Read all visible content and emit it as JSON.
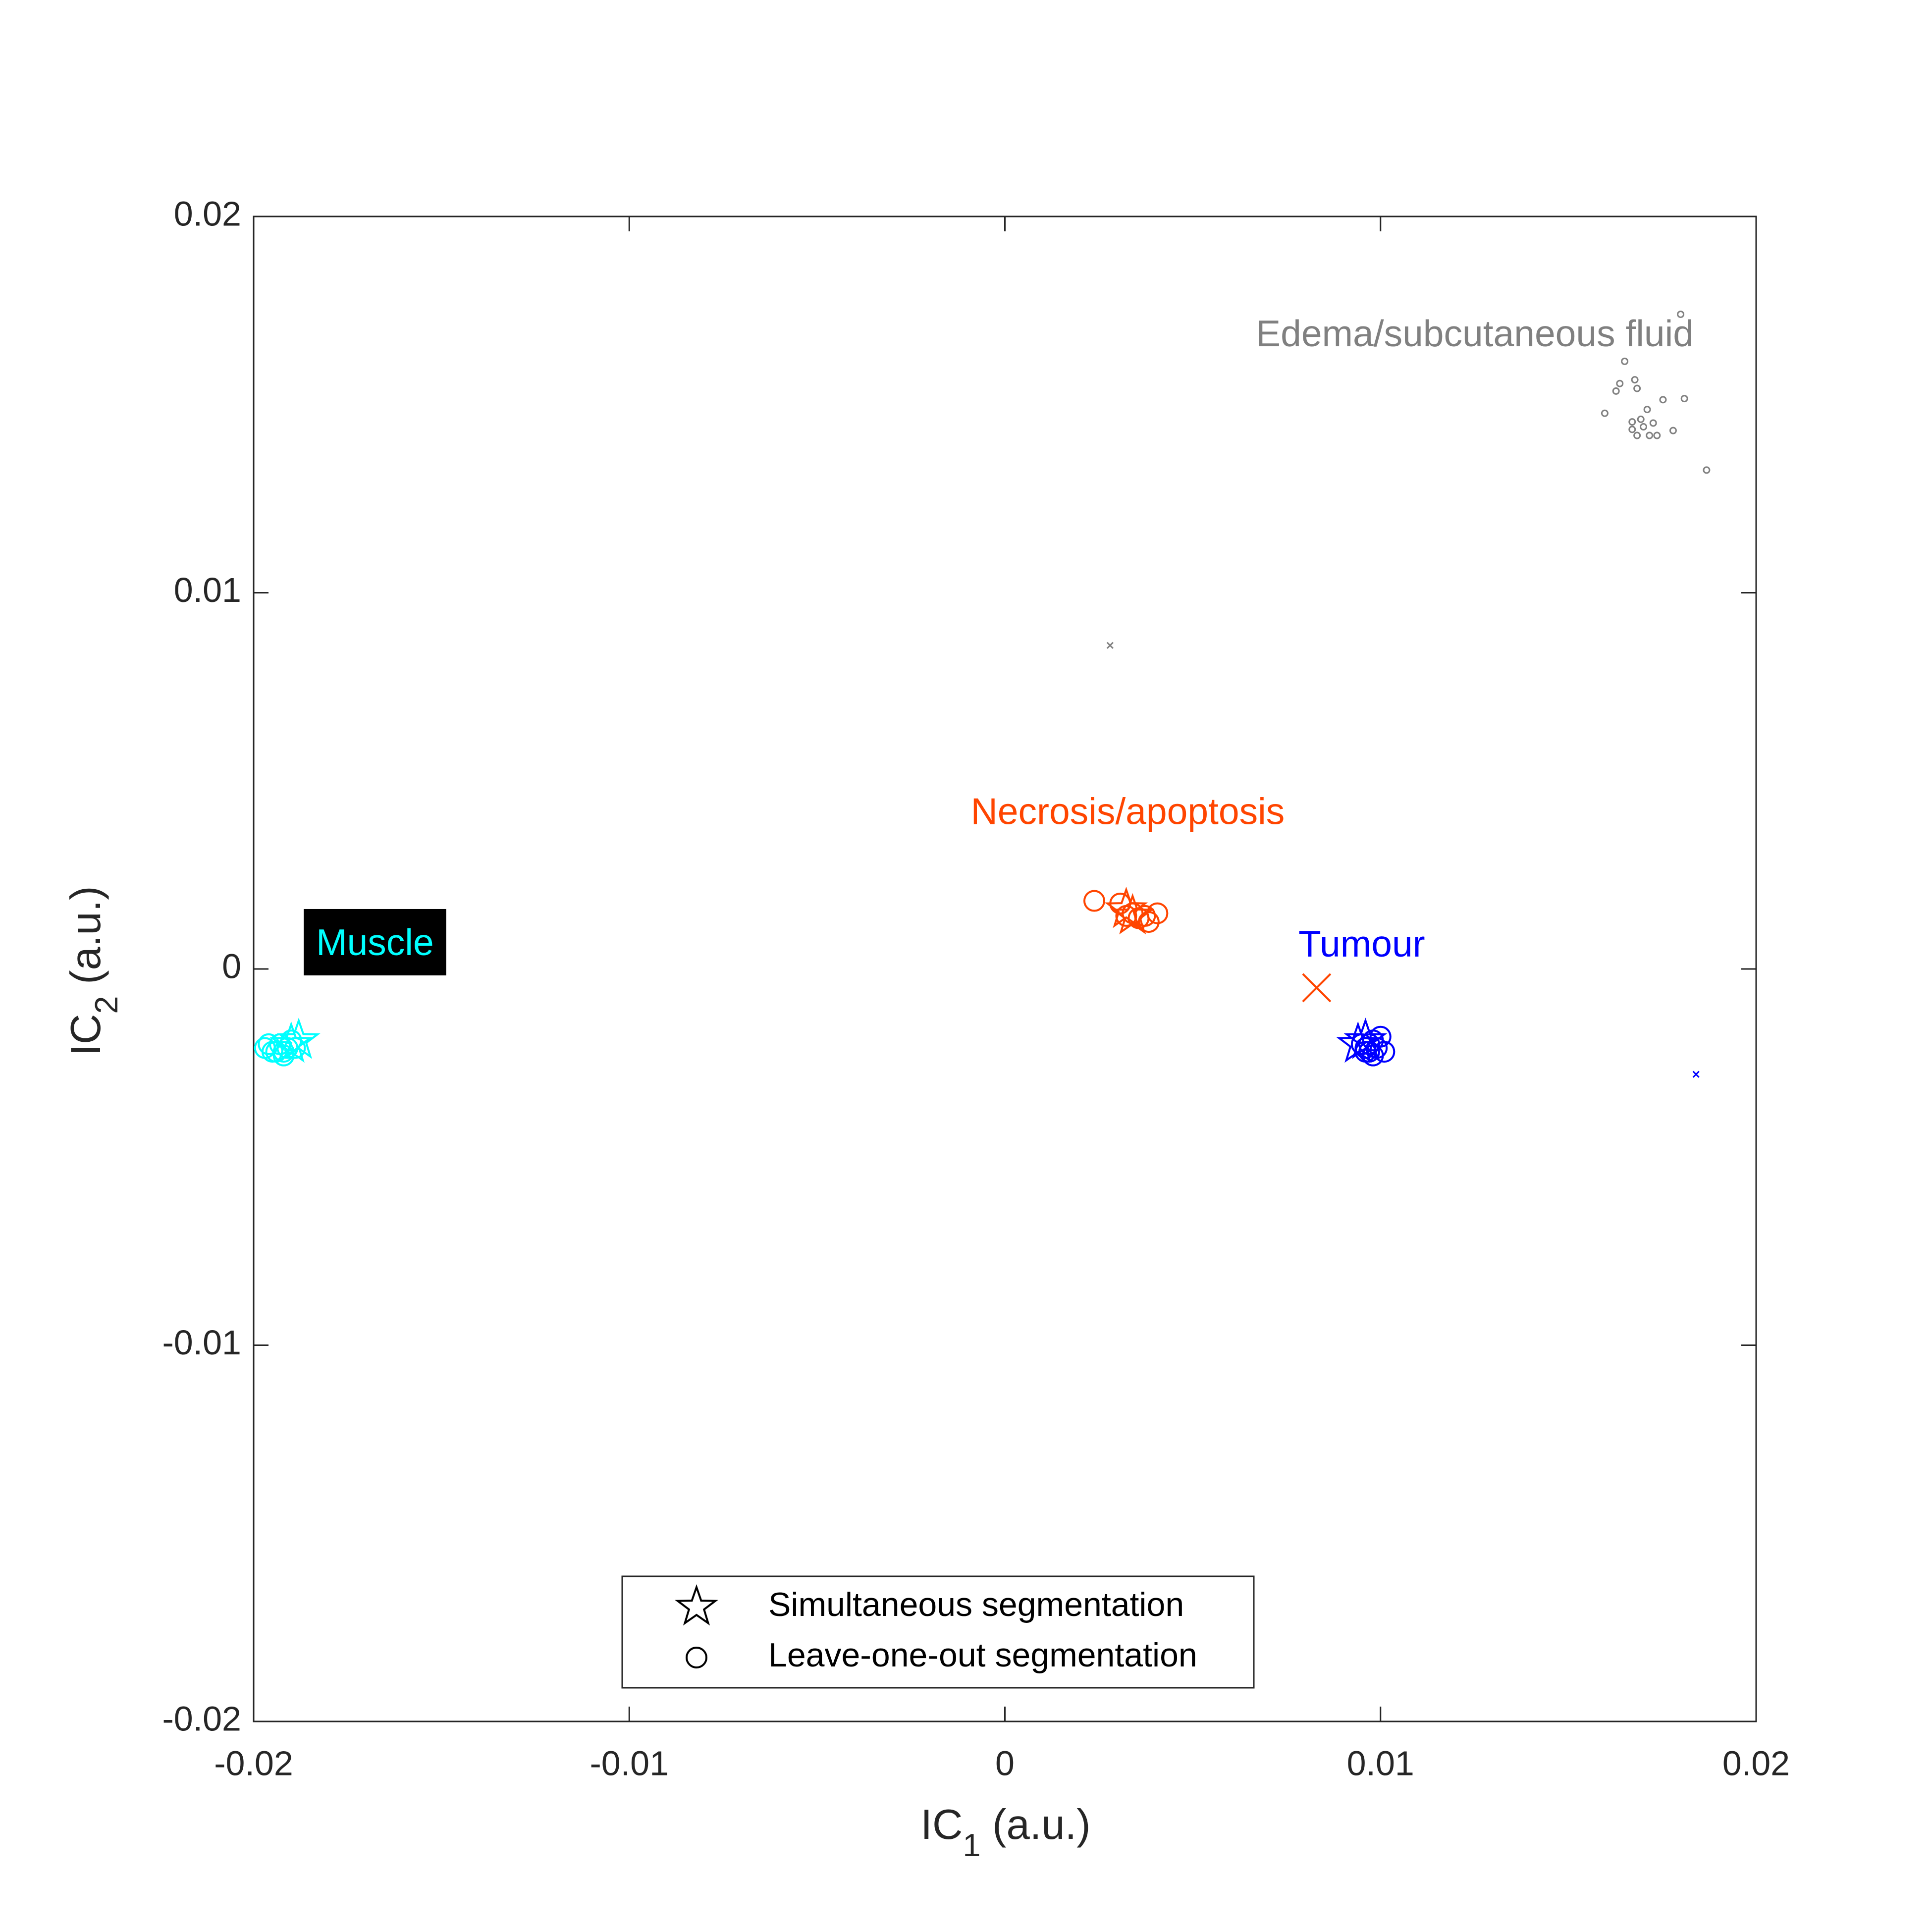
{
  "chart_data": {
    "type": "scatter",
    "xlabel": {
      "main": "IC",
      "sub": "1",
      "rest": " (a.u.)"
    },
    "ylabel": {
      "main": "IC",
      "sub": "2",
      "rest": " (a.u.)"
    },
    "xlim": [
      -0.02,
      0.02
    ],
    "ylim": [
      -0.02,
      0.02
    ],
    "xticks": [
      -0.02,
      -0.01,
      0,
      0.01,
      0.02
    ],
    "yticks": [
      -0.02,
      -0.01,
      0,
      0.01,
      0.02
    ],
    "legend_loc": "lower center",
    "legend": [
      {
        "label": "Simultaneous segmentation",
        "marker": "star"
      },
      {
        "label": "Leave-one-out segmentation",
        "marker": "circle"
      }
    ],
    "series": [
      {
        "color": "#00ffff",
        "marker": "circle",
        "marker_size": "large",
        "x": [
          -0.0197,
          -0.0195,
          -0.0193,
          -0.0192,
          -0.0191,
          -0.019,
          -0.0189,
          -0.0194,
          -0.0196,
          -0.0192
        ],
        "values": [
          -0.0021,
          -0.0022,
          -0.002,
          -0.0023,
          -0.0021,
          -0.0019,
          -0.0021,
          -0.0022,
          -0.002,
          -0.0022
        ]
      },
      {
        "color": "#00ffff",
        "marker": "star",
        "marker_size": "large",
        "x": [
          -0.0188,
          -0.019
        ],
        "values": [
          -0.0019,
          -0.002
        ]
      },
      {
        "color": "#ff4500",
        "marker": "circle",
        "marker_size": "large",
        "x": [
          0.00238,
          0.00307,
          0.0034,
          0.00373,
          0.00406,
          0.00383,
          0.00356,
          0.00323
        ],
        "values": [
          0.00181,
          0.00174,
          0.00148,
          0.00141,
          0.00148,
          0.00125,
          0.00135,
          0.00141
        ]
      },
      {
        "color": "#ff4500",
        "marker": "star",
        "marker_size": "large",
        "x": [
          0.00323,
          0.0034
        ],
        "values": [
          0.00158,
          0.00141
        ]
      },
      {
        "color": "#0000ff",
        "marker": "circle",
        "marker_size": "large",
        "x": [
          0.0095,
          0.0096,
          0.0097,
          0.0098,
          0.0099,
          0.01,
          0.0096,
          0.0098,
          0.0101,
          0.0097
        ],
        "values": [
          -0.002,
          -0.0021,
          -0.0022,
          -0.0019,
          -0.0021,
          -0.0018,
          -0.0022,
          -0.0023,
          -0.0022,
          -0.002
        ]
      },
      {
        "color": "#0000ff",
        "marker": "star",
        "marker_size": "large",
        "x": [
          0.0094,
          0.0096
        ],
        "values": [
          -0.002,
          -0.0019
        ]
      },
      {
        "color": "#808080",
        "marker": "circle",
        "marker_size": "small",
        "x": [
          0.01597,
          0.01627,
          0.01637,
          0.0165,
          0.01677,
          0.01683,
          0.01693,
          0.0171,
          0.01716,
          0.01726,
          0.01752,
          0.01779,
          0.01799,
          0.01809,
          0.01868,
          0.0167,
          0.01683,
          0.017,
          0.01736,
          0.0167
        ],
        "values": [
          0.01477,
          0.01536,
          0.01556,
          0.01615,
          0.01566,
          0.01543,
          0.01461,
          0.01487,
          0.01418,
          0.01451,
          0.01513,
          0.01431,
          0.0174,
          0.01516,
          0.01326,
          0.01434,
          0.01418,
          0.01441,
          0.01418,
          0.01454
        ]
      },
      {
        "color": "#808080",
        "marker": "x",
        "marker_size": "small",
        "x": [
          0.0028
        ],
        "values": [
          0.0086
        ]
      },
      {
        "color": "#ff4500",
        "marker": "x",
        "marker_size": "large",
        "x": [
          0.0083
        ],
        "values": [
          -0.0005
        ]
      },
      {
        "color": "#0000ff",
        "marker": "x",
        "marker_size": "small",
        "x": [
          0.0184
        ],
        "values": [
          -0.0028
        ]
      }
    ],
    "annotations": [
      {
        "text": "Edema/subcutaneous fluid",
        "x": 0.01251,
        "y": 0.01681,
        "color": "#808080"
      },
      {
        "text": "Necrosis/apoptosis",
        "x": 0.00327,
        "y": 0.00411,
        "color": "#ff4500"
      },
      {
        "text": "Tumour",
        "x": 0.0095,
        "y": 0.00059,
        "color": "#0000ff"
      },
      {
        "text": "Muscle",
        "x": -0.01677,
        "y": 0.00063,
        "color": "#00ffff",
        "background": "#000000"
      }
    ]
  }
}
